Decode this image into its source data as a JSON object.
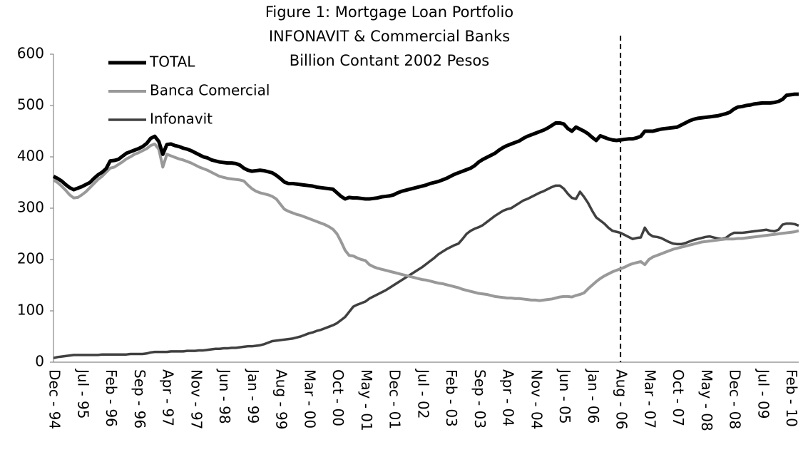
{
  "chart_data": {
    "type": "line",
    "title": [
      "Figure 1: Mortgage Loan Portfolio",
      "INFONAVIT & Commercial Banks",
      "Billion Contant 2002 Pesos"
    ],
    "categories": [
      "Dec - 94",
      null,
      null,
      null,
      null,
      null,
      null,
      "Jul - 95",
      null,
      null,
      null,
      null,
      null,
      null,
      "Feb - 96",
      null,
      null,
      null,
      null,
      null,
      null,
      "Sep - 96",
      null,
      null,
      null,
      null,
      null,
      null,
      "Apr - 97",
      null,
      null,
      null,
      null,
      null,
      null,
      "Nov - 97",
      null,
      null,
      null,
      null,
      null,
      null,
      "Jun - 98",
      null,
      null,
      null,
      null,
      null,
      null,
      "Jan - 99",
      null,
      null,
      null,
      null,
      null,
      null,
      "Aug - 99",
      null,
      null,
      null,
      null,
      null,
      null,
      "Mar - 00",
      null,
      null,
      null,
      null,
      null,
      null,
      "Oct - 00",
      null,
      null,
      null,
      null,
      null,
      null,
      "May - 01",
      null,
      null,
      null,
      null,
      null,
      null,
      "Dec - 01",
      null,
      null,
      null,
      null,
      null,
      null,
      "Jul - 02",
      null,
      null,
      null,
      null,
      null,
      null,
      "Feb - 03",
      null,
      null,
      null,
      null,
      null,
      null,
      "Sep - 03",
      null,
      null,
      null,
      null,
      null,
      null,
      "Apr - 04",
      null,
      null,
      null,
      null,
      null,
      null,
      "Nov - 04",
      null,
      null,
      null,
      null,
      null,
      null,
      "Jun - 05",
      null,
      null,
      null,
      null,
      null,
      null,
      "Jan - 06",
      null,
      null,
      null,
      null,
      null,
      null,
      "Aug - 06",
      null,
      null,
      null,
      null,
      null,
      null,
      "Mar - 07",
      null,
      null,
      null,
      null,
      null,
      null,
      "Oct - 07",
      null,
      null,
      null,
      null,
      null,
      null,
      "May - 08",
      null,
      null,
      null,
      null,
      null,
      null,
      "Dec - 08",
      null,
      null,
      null,
      null,
      null,
      null,
      "Jul - 09",
      null,
      null,
      null,
      null,
      null,
      null,
      "Feb - 10",
      null,
      null
    ],
    "series": [
      {
        "name": "TOTAL",
        "color": "#000000",
        "values": [
          362,
          358,
          353,
          346,
          340,
          336,
          339,
          342,
          346,
          350,
          358,
          365,
          370,
          377,
          392,
          393,
          395,
          401,
          407,
          410,
          413,
          416,
          420,
          426,
          436,
          440,
          430,
          405,
          424,
          425,
          422,
          420,
          417,
          415,
          412,
          408,
          404,
          400,
          398,
          394,
          392,
          390,
          389,
          388,
          388,
          387,
          384,
          378,
          374,
          372,
          373,
          374,
          373,
          371,
          369,
          364,
          358,
          351,
          348,
          348,
          347,
          346,
          345,
          344,
          343,
          341,
          340,
          339,
          338,
          337,
          330,
          323,
          318,
          321,
          320,
          320,
          319,
          318,
          318,
          319,
          320,
          322,
          323,
          324,
          326,
          330,
          333,
          335,
          337,
          339,
          341,
          343,
          345,
          348,
          350,
          352,
          355,
          358,
          362,
          366,
          369,
          372,
          375,
          378,
          383,
          390,
          395,
          399,
          403,
          407,
          413,
          418,
          422,
          425,
          428,
          431,
          436,
          440,
          443,
          446,
          449,
          452,
          456,
          461,
          466,
          466,
          464,
          455,
          450,
          458,
          454,
          450,
          445,
          438,
          432,
          441,
          438,
          435,
          433,
          432,
          433,
          434,
          435,
          435,
          437,
          440,
          450,
          450,
          450,
          452,
          454,
          455,
          456,
          457,
          458,
          462,
          466,
          470,
          473,
          475,
          476,
          477,
          478,
          479,
          480,
          482,
          484,
          487,
          493,
          497,
          498,
          500,
          501,
          503,
          504,
          505,
          505,
          505,
          506,
          508,
          512,
          520,
          521,
          522,
          522
        ]
      },
      {
        "name": "Banca Comercial",
        "color": "#999999",
        "values": [
          355,
          350,
          343,
          335,
          326,
          320,
          321,
          326,
          332,
          340,
          348,
          356,
          362,
          370,
          378,
          380,
          385,
          390,
          396,
          400,
          405,
          408,
          412,
          416,
          422,
          425,
          415,
          380,
          405,
          402,
          399,
          396,
          394,
          391,
          388,
          384,
          380,
          377,
          374,
          370,
          366,
          362,
          360,
          358,
          357,
          356,
          355,
          353,
          345,
          338,
          333,
          330,
          328,
          326,
          323,
          318,
          308,
          298,
          294,
          291,
          288,
          286,
          283,
          280,
          277,
          274,
          271,
          268,
          264,
          259,
          250,
          235,
          218,
          208,
          207,
          203,
          200,
          198,
          190,
          186,
          183,
          181,
          179,
          177,
          175,
          173,
          171,
          169,
          167,
          165,
          163,
          161,
          160,
          158,
          156,
          154,
          153,
          151,
          149,
          147,
          145,
          142,
          140,
          138,
          136,
          134,
          133,
          132,
          130,
          128,
          127,
          126,
          125,
          125,
          124,
          124,
          123,
          122,
          121,
          121,
          120,
          121,
          122,
          123,
          125,
          127,
          128,
          128,
          127,
          130,
          132,
          135,
          143,
          150,
          157,
          163,
          168,
          172,
          176,
          179,
          182,
          185,
          189,
          192,
          194,
          196,
          190,
          200,
          205,
          208,
          211,
          214,
          217,
          220,
          222,
          224,
          226,
          228,
          230,
          232,
          234,
          235,
          236,
          237,
          238,
          239,
          240,
          240,
          240,
          241,
          241,
          242,
          243,
          244,
          245,
          246,
          247,
          248,
          249,
          250,
          251,
          252,
          253,
          254,
          256
        ]
      },
      {
        "name": "Infonavit",
        "color": "#404040",
        "values": [
          8,
          10,
          11,
          12,
          13,
          14,
          14,
          14,
          14,
          14,
          14,
          14,
          15,
          15,
          15,
          15,
          15,
          15,
          15,
          16,
          16,
          16,
          16,
          17,
          19,
          20,
          20,
          20,
          20,
          21,
          21,
          21,
          21,
          22,
          22,
          22,
          23,
          23,
          24,
          25,
          26,
          26,
          27,
          27,
          28,
          28,
          29,
          30,
          31,
          31,
          32,
          33,
          35,
          38,
          41,
          42,
          43,
          44,
          45,
          46,
          48,
          50,
          53,
          56,
          58,
          61,
          63,
          66,
          69,
          72,
          76,
          82,
          88,
          98,
          108,
          112,
          115,
          118,
          124,
          128,
          132,
          136,
          140,
          145,
          150,
          155,
          160,
          165,
          170,
          175,
          180,
          185,
          191,
          197,
          203,
          210,
          215,
          220,
          224,
          228,
          231,
          240,
          250,
          256,
          260,
          263,
          267,
          273,
          279,
          285,
          290,
          295,
          298,
          300,
          305,
          310,
          315,
          318,
          322,
          326,
          330,
          333,
          337,
          341,
          344,
          344,
          338,
          328,
          320,
          318,
          332,
          322,
          310,
          295,
          282,
          276,
          270,
          262,
          256,
          254,
          252,
          248,
          244,
          240,
          242,
          243,
          262,
          250,
          245,
          244,
          242,
          238,
          234,
          231,
          230,
          230,
          232,
          235,
          238,
          240,
          242,
          244,
          245,
          243,
          241,
          240,
          242,
          248,
          252,
          252,
          252,
          253,
          254,
          255,
          256,
          257,
          258,
          256,
          255,
          258,
          268,
          270,
          270,
          269,
          266
        ]
      }
    ],
    "ylim": [
      0,
      600
    ],
    "yticks": [
      0,
      100,
      200,
      300,
      400,
      500,
      600
    ],
    "grid": false,
    "legend": "upper left",
    "reference_line": "Aug - 06"
  }
}
